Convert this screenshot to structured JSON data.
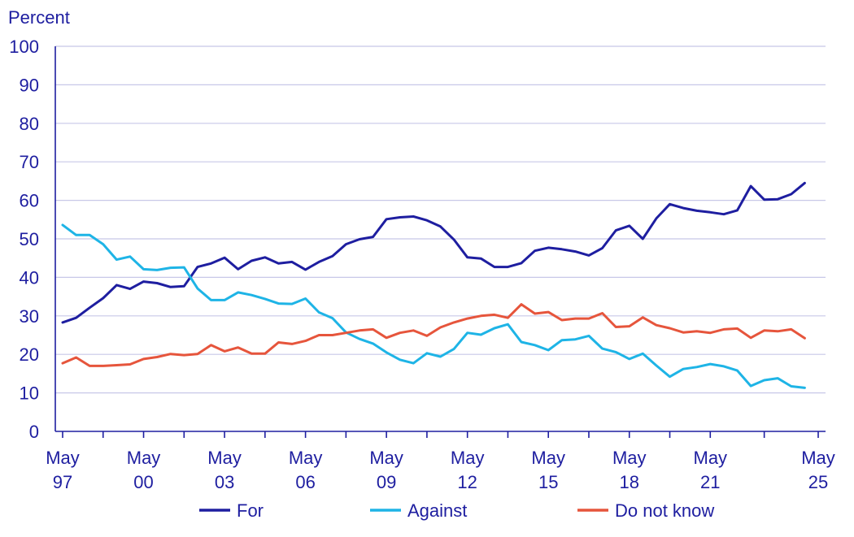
{
  "chart_data": {
    "type": "line",
    "ylabel": "Percent",
    "ylim": [
      0,
      100
    ],
    "yticks": [
      0,
      10,
      20,
      30,
      40,
      50,
      60,
      70,
      80,
      90,
      100
    ],
    "xlim": [
      0,
      56
    ],
    "xticks": [
      {
        "month": "May",
        "year": "97",
        "x": 0
      },
      {
        "month": "May",
        "year": "00",
        "x": 6
      },
      {
        "month": "May",
        "year": "03",
        "x": 12
      },
      {
        "month": "May",
        "year": "06",
        "x": 18
      },
      {
        "month": "May",
        "year": "09",
        "x": 24
      },
      {
        "month": "May",
        "year": "12",
        "x": 30
      },
      {
        "month": "May",
        "year": "15",
        "x": 36
      },
      {
        "month": "May",
        "year": "18",
        "x": 42
      },
      {
        "month": "May",
        "year": "21",
        "x": 48
      },
      {
        "month": "May",
        "year": "25",
        "x": 56
      }
    ],
    "grid": true,
    "legend_position": "bottom",
    "series": [
      {
        "name": "For",
        "color": "#1e1ea0",
        "values": [
          28.3,
          29.5,
          32.1,
          34.6,
          38.0,
          37.0,
          38.9,
          38.5,
          37.5,
          37.7,
          42.7,
          43.6,
          45.1,
          42.1,
          44.3,
          45.2,
          43.6,
          44.0,
          42.0,
          44.0,
          45.5,
          48.6,
          49.9,
          50.5,
          55.1,
          55.6,
          55.8,
          54.8,
          53.2,
          49.8,
          45.2,
          44.9,
          42.7,
          42.7,
          43.7,
          46.9,
          47.7,
          47.3,
          46.7,
          45.7,
          47.6,
          52.2,
          53.4,
          50.0,
          55.3,
          59.0,
          58.0,
          57.3,
          56.9,
          56.4,
          57.4,
          63.7,
          60.2,
          60.3,
          61.6,
          64.5
        ]
      },
      {
        "name": "Against",
        "color": "#1eb4e6",
        "values": [
          53.6,
          51.0,
          51.0,
          48.6,
          44.6,
          45.4,
          42.1,
          41.9,
          42.5,
          42.6,
          37.1,
          34.1,
          34.1,
          36.1,
          35.4,
          34.4,
          33.2,
          33.1,
          34.5,
          30.9,
          29.4,
          25.7,
          24.0,
          22.8,
          20.5,
          18.6,
          17.7,
          20.3,
          19.4,
          21.4,
          25.6,
          25.1,
          26.8,
          27.8,
          23.2,
          22.4,
          21.1,
          23.7,
          23.9,
          24.8,
          21.5,
          20.6,
          18.8,
          20.2,
          17.1,
          14.2,
          16.2,
          16.7,
          17.5,
          16.9,
          15.8,
          11.8,
          13.3,
          13.8,
          11.7,
          11.3
        ]
      },
      {
        "name": "Do not know",
        "color": "#e6553c",
        "values": [
          17.7,
          19.2,
          17.0,
          17.0,
          17.2,
          17.4,
          18.8,
          19.3,
          20.1,
          19.8,
          20.1,
          22.4,
          20.8,
          21.8,
          20.2,
          20.2,
          23.1,
          22.7,
          23.5,
          25.0,
          25.0,
          25.6,
          26.2,
          26.5,
          24.3,
          25.6,
          26.2,
          24.8,
          27.0,
          28.3,
          29.3,
          30.0,
          30.3,
          29.5,
          33.0,
          30.6,
          31.0,
          28.9,
          29.3,
          29.3,
          30.7,
          27.1,
          27.3,
          29.6,
          27.6,
          26.8,
          25.7,
          26.0,
          25.6,
          26.5,
          26.7,
          24.3,
          26.2,
          26.0,
          26.5,
          24.2
        ]
      }
    ]
  }
}
